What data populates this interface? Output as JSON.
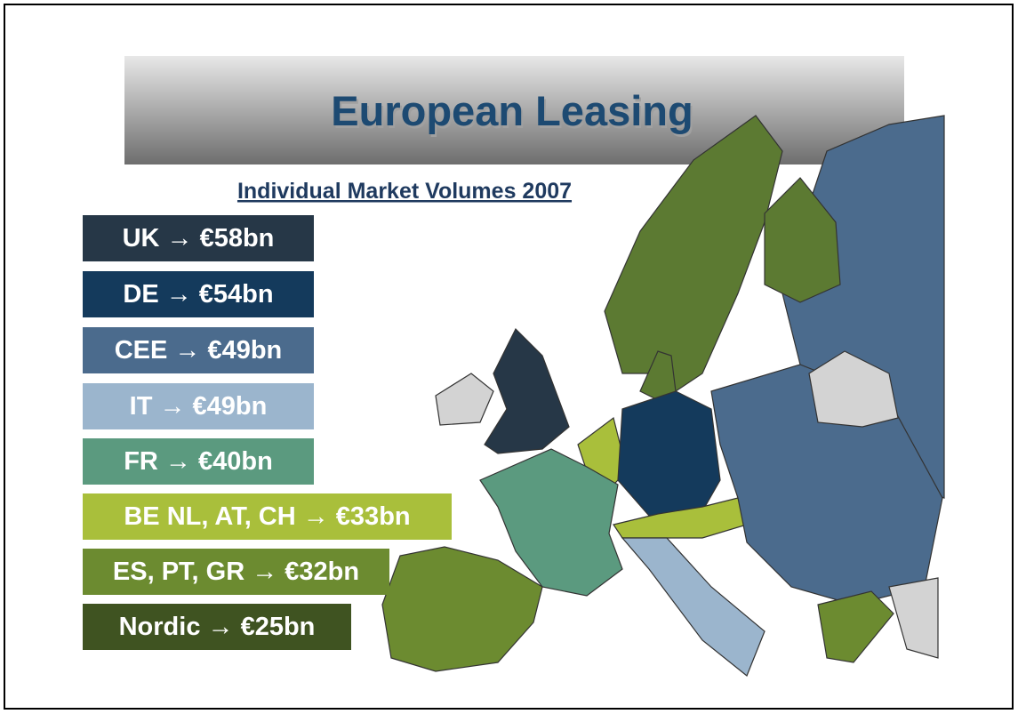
{
  "header": {
    "title": "European Leasing",
    "subtitle": "Individual Market Volumes 2007"
  },
  "items": [
    {
      "label": "UK → €58bn",
      "color": "#263747",
      "width": 260
    },
    {
      "label": "DE → €54bn",
      "color": "#143a5c",
      "width": 260
    },
    {
      "label": "CEE → €49bn",
      "color": "#4b6b8d",
      "width": 260
    },
    {
      "label": "IT → €49bn",
      "color": "#9bb5cd",
      "width": 260
    },
    {
      "label": "FR → €40bn",
      "color": "#5b9a7f",
      "width": 260
    },
    {
      "label": "BE NL, AT, CH → €33bn",
      "color": "#a9bf3b",
      "width": 415
    },
    {
      "label": "ES, PT, GR → €32bn",
      "color": "#6c8b30",
      "width": 345
    },
    {
      "label": "Nordic → €25bn",
      "color": "#3f5321",
      "width": 302
    }
  ]
}
